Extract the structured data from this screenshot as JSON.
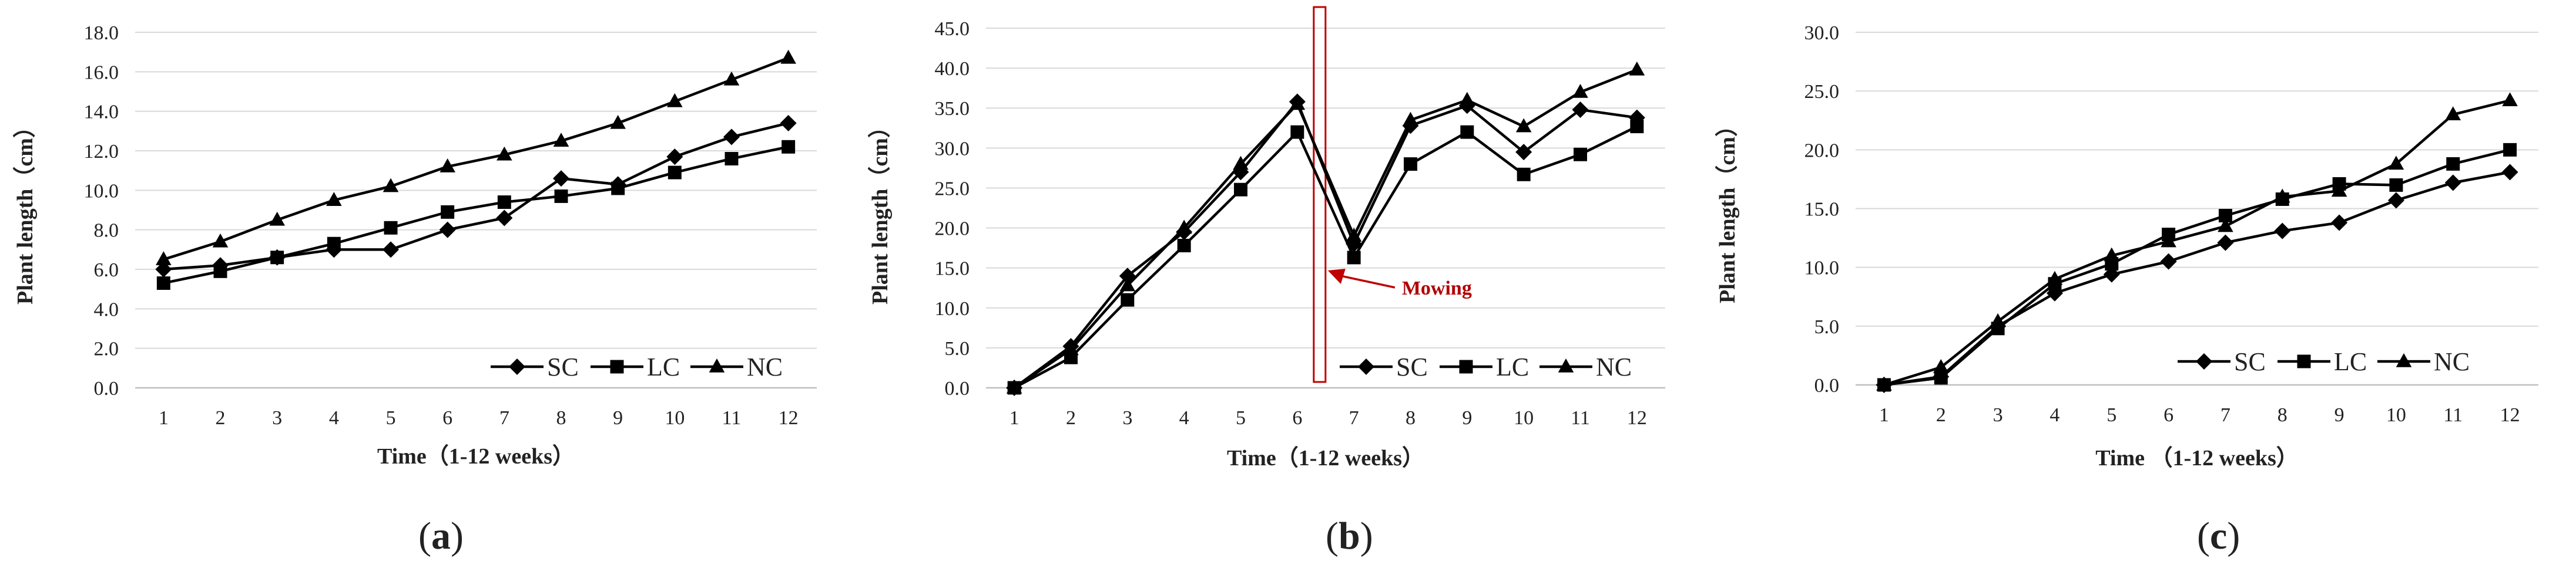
{
  "figure": {
    "series_names": [
      "SC",
      "LC",
      "NC"
    ],
    "line_color": "#000000",
    "grid_color": "#d9d9d9",
    "annotation_color": "#c00000"
  },
  "chart_data": [
    {
      "type": "line",
      "panel_label": "a",
      "xlabel": "Time（1-12 weeks）",
      "ylabel": "Plant  length（cm）",
      "categories": [
        1,
        2,
        3,
        4,
        5,
        6,
        7,
        8,
        9,
        10,
        11,
        12
      ],
      "ylim": [
        0,
        18
      ],
      "ytick_step": 2,
      "ytick_labels": [
        "0.0",
        "2.0",
        "4.0",
        "6.0",
        "8.0",
        "10.0",
        "12.0",
        "14.0",
        "16.0",
        "18.0"
      ],
      "grid": true,
      "legend": "bottom-right",
      "series": [
        {
          "name": "SC",
          "marker": "diamond",
          "values": [
            6.0,
            6.2,
            6.6,
            7.0,
            7.0,
            8.0,
            8.6,
            10.6,
            10.3,
            11.7,
            12.7,
            13.4
          ]
        },
        {
          "name": "LC",
          "marker": "square",
          "values": [
            5.3,
            5.9,
            6.6,
            7.3,
            8.1,
            8.9,
            9.4,
            9.7,
            10.1,
            10.9,
            11.6,
            12.2
          ]
        },
        {
          "name": "NC",
          "marker": "triangle",
          "values": [
            6.5,
            7.4,
            8.5,
            9.5,
            10.2,
            11.2,
            11.8,
            12.5,
            13.4,
            14.5,
            15.6,
            16.7
          ]
        }
      ]
    },
    {
      "type": "line",
      "panel_label": "b",
      "xlabel": "Time（1-12 weeks）",
      "ylabel": "Plant   length（cm）",
      "categories": [
        1,
        2,
        3,
        4,
        5,
        6,
        7,
        8,
        9,
        10,
        11,
        12
      ],
      "ylim": [
        0,
        45
      ],
      "ytick_step": 5,
      "ytick_labels": [
        "0.0",
        "5.0",
        "10.0",
        "15.0",
        "20.0",
        "25.0",
        "30.0",
        "35.0",
        "40.0",
        "45.0"
      ],
      "grid": true,
      "legend": "bottom-right",
      "annotation": {
        "text": "Mowing",
        "at_week": 6
      },
      "series": [
        {
          "name": "SC",
          "marker": "diamond",
          "values": [
            0.0,
            5.2,
            14.0,
            19.5,
            27.0,
            35.8,
            18.0,
            32.8,
            35.3,
            29.5,
            34.8,
            33.8
          ]
        },
        {
          "name": "LC",
          "marker": "square",
          "values": [
            0.0,
            3.8,
            11.0,
            17.8,
            24.8,
            32.0,
            16.3,
            28.0,
            32.0,
            26.7,
            29.2,
            32.7
          ]
        },
        {
          "name": "NC",
          "marker": "triangle",
          "values": [
            0.0,
            4.8,
            12.8,
            20.0,
            28.0,
            35.5,
            19.0,
            33.5,
            36.0,
            32.7,
            37.0,
            39.8
          ]
        }
      ]
    },
    {
      "type": "line",
      "panel_label": "c",
      "xlabel": "Time （1-12 weeks）",
      "ylabel": "Plant  length（cm）",
      "categories": [
        1,
        2,
        3,
        4,
        5,
        6,
        7,
        8,
        9,
        10,
        11,
        12
      ],
      "ylim": [
        0,
        30
      ],
      "ytick_step": 5,
      "ytick_labels": [
        "0.0",
        "5.0",
        "10.0",
        "15.0",
        "20.0",
        "25.0",
        "30.0"
      ],
      "grid": true,
      "legend": "bottom-right",
      "series": [
        {
          "name": "SC",
          "marker": "diamond",
          "values": [
            0.0,
            0.7,
            5.0,
            7.8,
            9.4,
            10.5,
            12.1,
            13.1,
            13.8,
            15.7,
            17.2,
            18.1
          ]
        },
        {
          "name": "LC",
          "marker": "square",
          "values": [
            0.0,
            0.6,
            4.8,
            8.6,
            10.3,
            12.8,
            14.4,
            15.8,
            17.1,
            17.0,
            18.8,
            20.0
          ]
        },
        {
          "name": "NC",
          "marker": "triangle",
          "values": [
            0.0,
            1.5,
            5.4,
            9.0,
            11.0,
            12.2,
            13.5,
            16.0,
            16.5,
            18.8,
            23.0,
            24.2
          ]
        }
      ]
    }
  ]
}
